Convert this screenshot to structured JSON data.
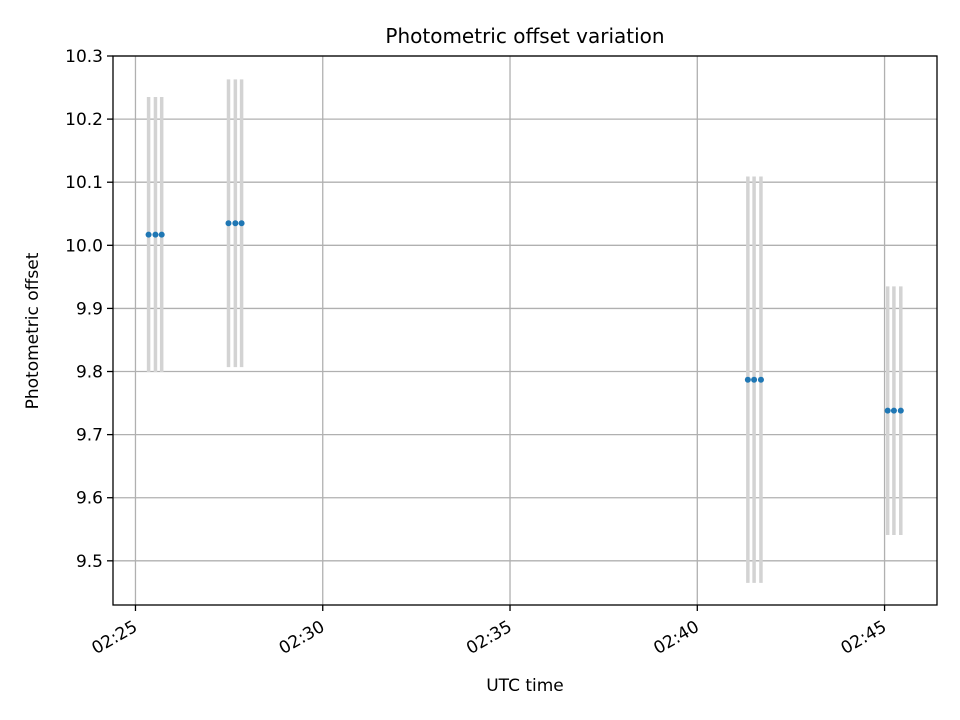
{
  "chart_data": {
    "type": "scatter",
    "title": "Photometric offset variation",
    "xlabel": "UTC time",
    "ylabel": "Photometric offset",
    "x_ticks": [
      "02:25",
      "02:30",
      "02:35",
      "02:40",
      "02:45"
    ],
    "y_ticks": [
      "9.5",
      "9.6",
      "9.7",
      "9.8",
      "9.9",
      "10.0",
      "10.1",
      "10.2",
      "10.3"
    ],
    "xlim": [
      "02:24:24",
      "02:46:24"
    ],
    "ylim": [
      9.43,
      10.3
    ],
    "grid": true,
    "marker_color": "#1f77b4",
    "errorbar_color": "#d3d3d3",
    "series": [
      {
        "points": [
          {
            "x": "02:25:21",
            "y": 10.017,
            "err": 0.218
          },
          {
            "x": "02:25:32",
            "y": 10.017,
            "err": 0.218
          },
          {
            "x": "02:25:42",
            "y": 10.017,
            "err": 0.218
          },
          {
            "x": "02:27:29",
            "y": 10.035,
            "err": 0.228
          },
          {
            "x": "02:27:40",
            "y": 10.035,
            "err": 0.228
          },
          {
            "x": "02:27:50",
            "y": 10.035,
            "err": 0.228
          },
          {
            "x": "02:41:21",
            "y": 9.787,
            "err": 0.322
          },
          {
            "x": "02:41:31",
            "y": 9.787,
            "err": 0.322
          },
          {
            "x": "02:41:42",
            "y": 9.787,
            "err": 0.322
          },
          {
            "x": "02:45:05",
            "y": 9.738,
            "err": 0.197
          },
          {
            "x": "02:45:15",
            "y": 9.738,
            "err": 0.197
          },
          {
            "x": "02:45:26",
            "y": 9.738,
            "err": 0.197
          }
        ]
      }
    ]
  }
}
